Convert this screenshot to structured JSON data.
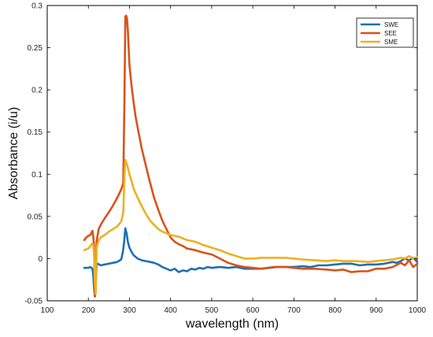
{
  "chart_data": {
    "type": "line",
    "xlabel": "wavelength (nm)",
    "ylabel": "Absorbance (i/u)",
    "xlim": [
      100,
      1000
    ],
    "ylim": [
      -0.05,
      0.3
    ],
    "xticks": [
      100,
      200,
      300,
      400,
      500,
      600,
      700,
      800,
      900,
      1000
    ],
    "yticks": [
      -0.05,
      0,
      0.05,
      0.1,
      0.15,
      0.2,
      0.25,
      0.3
    ],
    "ytick_labels": [
      "-0.05",
      "0",
      "0.05",
      "0.1",
      "0.15",
      "0.2",
      "0.25",
      "0.3"
    ],
    "grid": false,
    "legend_position": "top-right",
    "series": [
      {
        "name": "SWE",
        "color": "#1f6fb2",
        "x": [
          190,
          200,
          205,
          210,
          212,
          214,
          216,
          218,
          220,
          223,
          226,
          230,
          240,
          250,
          260,
          270,
          280,
          284,
          287,
          290,
          293,
          296,
          300,
          305,
          310,
          320,
          330,
          340,
          350,
          360,
          370,
          380,
          390,
          400,
          410,
          420,
          430,
          440,
          450,
          460,
          470,
          480,
          490,
          500,
          520,
          540,
          560,
          580,
          600,
          620,
          640,
          660,
          680,
          700,
          720,
          740,
          760,
          780,
          800,
          820,
          840,
          860,
          880,
          900,
          920,
          940,
          950,
          960,
          970,
          980,
          990,
          1000
        ],
        "y": [
          -0.011,
          -0.011,
          -0.01,
          -0.012,
          -0.02,
          -0.035,
          -0.045,
          -0.03,
          -0.008,
          -0.006,
          -0.007,
          -0.008,
          -0.007,
          -0.006,
          -0.005,
          -0.004,
          -0.001,
          0.008,
          0.02,
          0.036,
          0.03,
          0.02,
          0.013,
          0.008,
          0.004,
          0.0,
          -0.002,
          -0.003,
          -0.004,
          -0.005,
          -0.007,
          -0.01,
          -0.012,
          -0.014,
          -0.012,
          -0.016,
          -0.014,
          -0.015,
          -0.012,
          -0.013,
          -0.011,
          -0.012,
          -0.01,
          -0.011,
          -0.01,
          -0.011,
          -0.01,
          -0.012,
          -0.012,
          -0.012,
          -0.011,
          -0.01,
          -0.01,
          -0.01,
          -0.009,
          -0.01,
          -0.008,
          -0.008,
          -0.007,
          -0.006,
          -0.006,
          -0.008,
          -0.007,
          -0.007,
          -0.006,
          -0.004,
          -0.005,
          -0.003,
          0.0,
          -0.002,
          0.001,
          -0.004
        ]
      },
      {
        "name": "SEE",
        "color": "#d95319",
        "x": [
          190,
          195,
          200,
          205,
          210,
          212,
          214,
          216,
          218,
          220,
          222,
          225,
          230,
          240,
          250,
          260,
          270,
          280,
          285,
          288,
          290,
          292,
          294,
          296,
          298,
          300,
          305,
          310,
          315,
          320,
          330,
          340,
          350,
          360,
          370,
          380,
          390,
          400,
          410,
          420,
          430,
          440,
          460,
          480,
          500,
          520,
          540,
          560,
          580,
          600,
          620,
          650,
          680,
          700,
          720,
          750,
          780,
          800,
          820,
          840,
          860,
          880,
          900,
          920,
          940,
          960,
          970,
          980,
          990,
          1000
        ],
        "y": [
          0.022,
          0.025,
          0.027,
          0.028,
          0.033,
          0.026,
          0.015,
          -0.045,
          -0.03,
          0.02,
          0.026,
          0.035,
          0.04,
          0.048,
          0.055,
          0.063,
          0.072,
          0.082,
          0.09,
          0.2,
          0.287,
          0.288,
          0.285,
          0.27,
          0.25,
          0.23,
          0.205,
          0.185,
          0.168,
          0.155,
          0.13,
          0.11,
          0.09,
          0.072,
          0.058,
          0.045,
          0.035,
          0.025,
          0.02,
          0.017,
          0.015,
          0.012,
          0.01,
          0.007,
          0.005,
          0.0,
          -0.005,
          -0.008,
          -0.01,
          -0.011,
          -0.012,
          -0.01,
          -0.01,
          -0.011,
          -0.012,
          -0.012,
          -0.013,
          -0.014,
          -0.013,
          -0.016,
          -0.015,
          -0.015,
          -0.012,
          -0.012,
          -0.01,
          -0.005,
          -0.008,
          -0.002,
          -0.01,
          -0.006
        ]
      },
      {
        "name": "SME",
        "color": "#edb120",
        "x": [
          190,
          195,
          200,
          205,
          210,
          212,
          214,
          216,
          218,
          220,
          223,
          226,
          230,
          240,
          250,
          260,
          270,
          280,
          285,
          288,
          290,
          293,
          296,
          300,
          305,
          310,
          320,
          330,
          340,
          350,
          360,
          370,
          380,
          390,
          400,
          410,
          420,
          440,
          460,
          480,
          500,
          520,
          540,
          560,
          580,
          600,
          620,
          650,
          680,
          700,
          720,
          750,
          780,
          800,
          820,
          850,
          880,
          900,
          920,
          940,
          960,
          970,
          980,
          990,
          1000
        ],
        "y": [
          0.01,
          0.011,
          0.012,
          0.015,
          0.018,
          0.015,
          0.005,
          -0.03,
          -0.042,
          0.012,
          0.018,
          0.022,
          0.025,
          0.028,
          0.032,
          0.035,
          0.038,
          0.044,
          0.055,
          0.1,
          0.117,
          0.113,
          0.108,
          0.1,
          0.092,
          0.083,
          0.072,
          0.062,
          0.053,
          0.045,
          0.04,
          0.035,
          0.032,
          0.03,
          0.028,
          0.027,
          0.026,
          0.022,
          0.02,
          0.016,
          0.013,
          0.01,
          0.006,
          0.003,
          0.0,
          0.0,
          0.001,
          0.001,
          0.001,
          0.0,
          -0.001,
          -0.002,
          -0.003,
          -0.002,
          -0.003,
          -0.003,
          -0.004,
          -0.003,
          -0.002,
          -0.001,
          0.001,
          0.0,
          0.003,
          0.0,
          0.002
        ]
      }
    ]
  }
}
